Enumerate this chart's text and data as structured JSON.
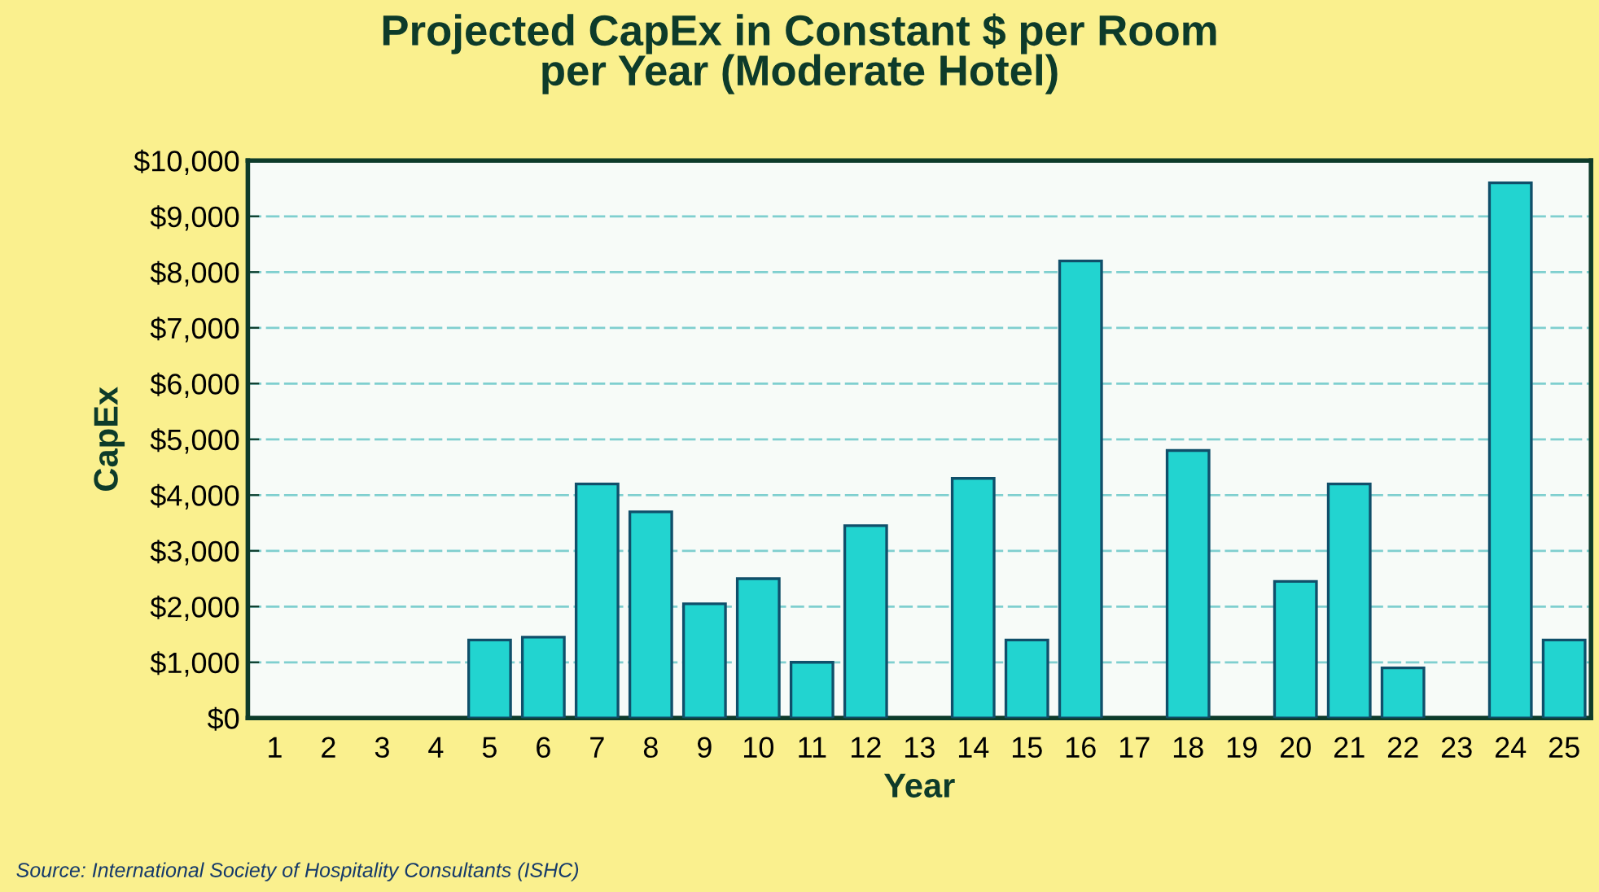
{
  "chart_data": {
    "type": "bar",
    "title": "Projected CapEx in Constant $ per Room\nper Year (Moderate Hotel)",
    "xlabel": "Year",
    "ylabel": "CapEx",
    "categories": [
      "1",
      "2",
      "3",
      "4",
      "5",
      "6",
      "7",
      "8",
      "9",
      "10",
      "11",
      "12",
      "13",
      "14",
      "15",
      "16",
      "17",
      "18",
      "19",
      "20",
      "21",
      "22",
      "23",
      "24",
      "25"
    ],
    "values": [
      null,
      null,
      null,
      null,
      1400,
      1450,
      4200,
      3700,
      2050,
      2500,
      1000,
      3450,
      null,
      4300,
      1400,
      8200,
      null,
      4800,
      null,
      2450,
      4200,
      900,
      null,
      9600,
      1400
    ],
    "color": "#22d4d0",
    "ylim": [
      0,
      10000
    ],
    "yticks": [
      {
        "value": 0,
        "label": "$0"
      },
      {
        "value": 1000,
        "label": "$1,000"
      },
      {
        "value": 2000,
        "label": "$2,000"
      },
      {
        "value": 3000,
        "label": "$3,000"
      },
      {
        "value": 4000,
        "label": "$4,000"
      },
      {
        "value": 5000,
        "label": "$5,000"
      },
      {
        "value": 6000,
        "label": "$6,000"
      },
      {
        "value": 7000,
        "label": "$7,000"
      },
      {
        "value": 8000,
        "label": "$8,000"
      },
      {
        "value": 9000,
        "label": "$9,000"
      },
      {
        "value": 10000,
        "label": "$10,000"
      }
    ],
    "grid": "y",
    "annotations": [
      "Source: International Society of Hospitality Consultants (ISHC)"
    ]
  }
}
